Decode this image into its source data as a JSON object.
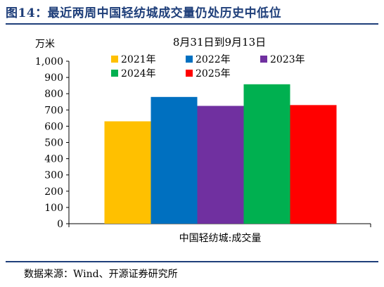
{
  "header": {
    "title": "图14：最近两周中国轻纺城成交量仍处历史中低位"
  },
  "source_note": "数据来源：Wind、开源证券研究所",
  "colors": {
    "title_navy": "#1f3f7a",
    "2021": "#ffc000",
    "2022": "#0070c0",
    "2023": "#7030a0",
    "2024": "#00b050",
    "2025": "#ff0000"
  },
  "chart_data": {
    "type": "bar",
    "title": "8月31日到9月13日",
    "ylabel": "万米",
    "xlabel": "中国轻纺城:成交量",
    "categories": [
      "中国轻纺城:成交量"
    ],
    "ylim": [
      0,
      1000
    ],
    "yticks": [
      0,
      100,
      200,
      300,
      400,
      500,
      600,
      700,
      800,
      900,
      1000
    ],
    "ytick_labels": [
      "0",
      "100",
      "200",
      "300",
      "400",
      "500",
      "600",
      "700",
      "800",
      "900",
      "1,000"
    ],
    "grid": false,
    "legend_position": "top",
    "series": [
      {
        "name": "2021年",
        "values": [
          630
        ],
        "color": "#ffc000"
      },
      {
        "name": "2022年",
        "values": [
          780
        ],
        "color": "#0070c0"
      },
      {
        "name": "2023年",
        "values": [
          725
        ],
        "color": "#7030a0"
      },
      {
        "name": "2024年",
        "values": [
          858
        ],
        "color": "#00b050"
      },
      {
        "name": "2025年",
        "values": [
          730
        ],
        "color": "#ff0000"
      }
    ]
  }
}
